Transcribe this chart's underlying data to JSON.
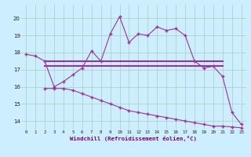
{
  "background_color": "#cceeff",
  "grid_color": "#aaccbb",
  "line_color": "#993399",
  "xlabel": "Windchill (Refroidissement éolien,°C)",
  "ylim": [
    13.5,
    20.8
  ],
  "xlim": [
    -0.5,
    23.5
  ],
  "yticks": [
    14,
    15,
    16,
    17,
    18,
    19,
    20
  ],
  "xticks": [
    0,
    1,
    2,
    3,
    4,
    5,
    6,
    7,
    8,
    9,
    10,
    11,
    12,
    13,
    14,
    15,
    16,
    17,
    18,
    19,
    20,
    21,
    22,
    23
  ],
  "series1_x": [
    0,
    1,
    2,
    3,
    4,
    5,
    6,
    7,
    8,
    9,
    10,
    11,
    12,
    13,
    14,
    15,
    16,
    17,
    18,
    19,
    20,
    21,
    22,
    23
  ],
  "series1_y": [
    17.9,
    17.8,
    17.5,
    16.0,
    16.3,
    16.7,
    17.1,
    18.1,
    17.5,
    19.1,
    20.1,
    18.6,
    19.1,
    19.0,
    19.5,
    19.3,
    19.4,
    19.0,
    17.5,
    17.1,
    17.2,
    16.6,
    14.5,
    13.8
  ],
  "series2_x": [
    2,
    3,
    4,
    5,
    6,
    7,
    8,
    9,
    10,
    11,
    12,
    13,
    14,
    15,
    16,
    17,
    18,
    19,
    20,
    21
  ],
  "series2_y": [
    17.5,
    17.5,
    17.5,
    17.5,
    17.5,
    17.5,
    17.5,
    17.5,
    17.5,
    17.5,
    17.5,
    17.5,
    17.5,
    17.5,
    17.5,
    17.5,
    17.5,
    17.5,
    17.5,
    17.5
  ],
  "series3_x": [
    2,
    3,
    4,
    5,
    6,
    7,
    8,
    9,
    10,
    11,
    12,
    13,
    14,
    15,
    16,
    17,
    18,
    19,
    20,
    21
  ],
  "series3_y": [
    17.2,
    17.2,
    17.2,
    17.2,
    17.2,
    17.2,
    17.2,
    17.2,
    17.2,
    17.2,
    17.2,
    17.2,
    17.2,
    17.2,
    17.2,
    17.2,
    17.2,
    17.2,
    17.2,
    17.2
  ],
  "series4_x": [
    2,
    3,
    4,
    5,
    6,
    7,
    8,
    9,
    10,
    11,
    12,
    13,
    14,
    15,
    16,
    17,
    18,
    19,
    20,
    21,
    22,
    23
  ],
  "series4_y": [
    15.9,
    15.9,
    15.9,
    15.8,
    15.6,
    15.4,
    15.2,
    15.0,
    14.8,
    14.6,
    14.5,
    14.4,
    14.3,
    14.2,
    14.1,
    14.0,
    13.9,
    13.8,
    13.7,
    13.7,
    13.65,
    13.6
  ]
}
